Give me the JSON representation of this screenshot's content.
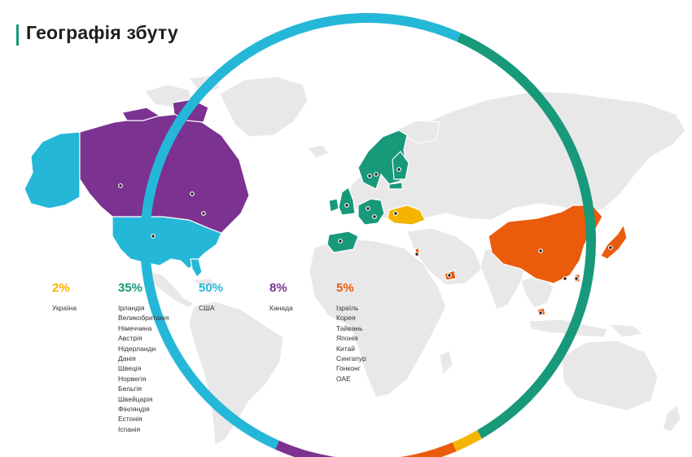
{
  "page": {
    "title": "Географія збуту"
  },
  "colors": {
    "ukraine": "#f5b400",
    "europe": "#17997a",
    "usa": "#25b7d8",
    "canada": "#7b3291",
    "asia": "#ea5b0c",
    "land": "#e8e8e8",
    "title_accent": "#17997a"
  },
  "legend": [
    {
      "key": "ukraine",
      "percent": "2%",
      "countries": [
        "Україна"
      ]
    },
    {
      "key": "europe",
      "percent": "35%",
      "countries": [
        "Ірландія",
        "Великобританія",
        "Німеччина",
        "Австрія",
        "Нідерланди",
        "Данія",
        "Швеція",
        "Норвегія",
        "Бельгія",
        "Швейцарія",
        "Фінляндія",
        "Естонія",
        "Іспанія"
      ]
    },
    {
      "key": "usa",
      "percent": "50%",
      "countries": [
        "США"
      ]
    },
    {
      "key": "canada",
      "percent": "8%",
      "countries": [
        "Канада"
      ]
    },
    {
      "key": "asia",
      "percent": "5%",
      "countries": [
        "Ізраїль",
        "Корея",
        "Тайвань",
        "Японія",
        "Китай",
        "Сингапур",
        "Гонконг",
        "ОАЕ"
      ]
    }
  ],
  "ring_segments": [
    {
      "key": "usa",
      "share": 50
    },
    {
      "key": "europe",
      "share": 35
    },
    {
      "key": "ukraine",
      "share": 2
    },
    {
      "key": "asia",
      "share": 5
    },
    {
      "key": "canada",
      "share": 8
    }
  ]
}
